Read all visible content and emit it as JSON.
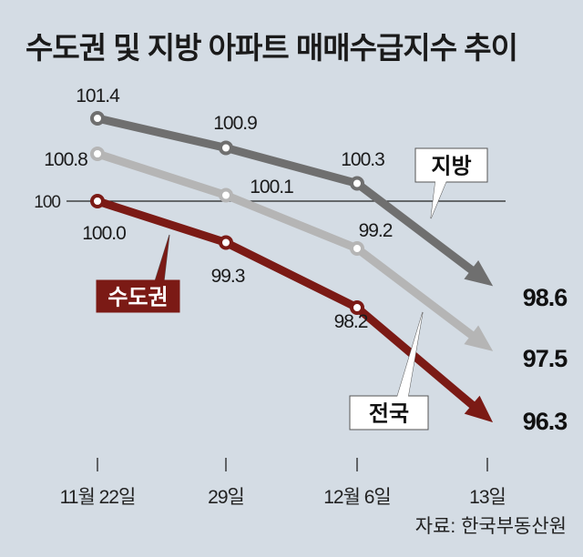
{
  "chart_data": {
    "type": "line",
    "title": "수도권 및 지방 아파트 매매수급지수 추이",
    "categories": [
      "11월 22일",
      "29일",
      "12월 6일",
      "13일"
    ],
    "reference_line": {
      "value": 100,
      "label": "100"
    },
    "series": [
      {
        "name": "지방",
        "values": [
          101.4,
          100.9,
          100.3,
          98.6
        ],
        "labels": [
          "101.4",
          "100.9",
          "100.3",
          "98.6"
        ],
        "color": "#6f6f6f"
      },
      {
        "name": "전국",
        "values": [
          100.8,
          100.1,
          99.2,
          97.5
        ],
        "labels": [
          "100.8",
          "100.1",
          "99.2",
          "97.5"
        ],
        "color": "#b5b5b5"
      },
      {
        "name": "수도권",
        "values": [
          100.0,
          99.3,
          98.2,
          96.3
        ],
        "labels": [
          "100.0",
          "99.3",
          "98.2",
          "96.3"
        ],
        "color": "#7b1a15"
      }
    ],
    "source": "자료: 한국부동산원",
    "xlabel": "",
    "ylabel": "",
    "grid": false
  }
}
